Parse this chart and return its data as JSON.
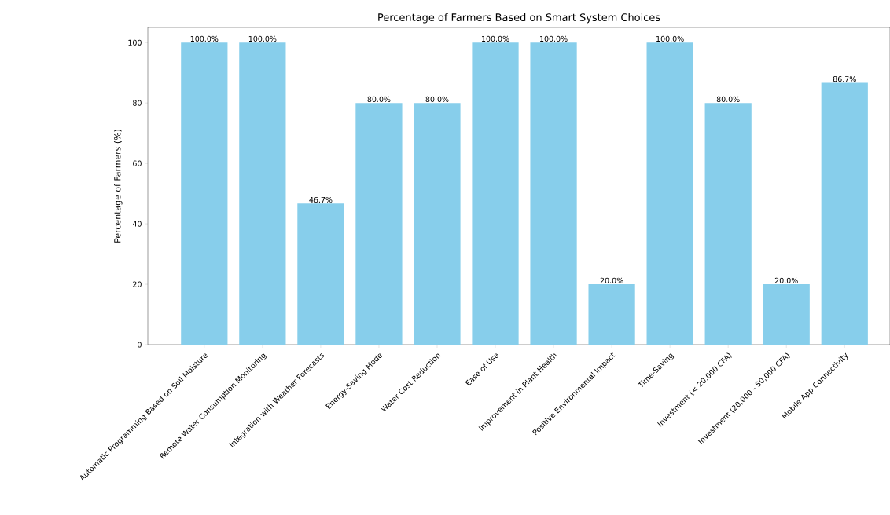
{
  "chart_data": {
    "type": "bar",
    "title": "Percentage of Farmers Based on Smart System Choices",
    "ylabel": "Percentage of Farmers (%)",
    "categories": [
      "Automatic Programming Based on Soil Moisture",
      "Remote Water Consumption Monitoring",
      "Integration with Weather Forecasts",
      "Energy-Saving Mode",
      "Water Cost Reduction",
      "Ease of Use",
      "Improvement in Plant Health",
      "Positive Environmental Impact",
      "Time-Saving",
      "Investment (< 20,000 CFA)",
      "Investment (20,000 - 50,000 CFA)",
      "Mobile App Connectivity"
    ],
    "values": [
      100.0,
      100.0,
      46.7,
      80.0,
      80.0,
      100.0,
      100.0,
      20.0,
      100.0,
      80.0,
      20.0,
      86.7
    ],
    "value_labels": [
      "100.0%",
      "100.0%",
      "46.7%",
      "80.0%",
      "80.0%",
      "100.0%",
      "100.0%",
      "20.0%",
      "100.0%",
      "80.0%",
      "20.0%",
      "86.7%"
    ],
    "color": "#87ceeb",
    "ylim": [
      0,
      105
    ],
    "yticks": [
      0,
      20,
      40,
      60,
      80,
      100
    ],
    "grid": false
  }
}
